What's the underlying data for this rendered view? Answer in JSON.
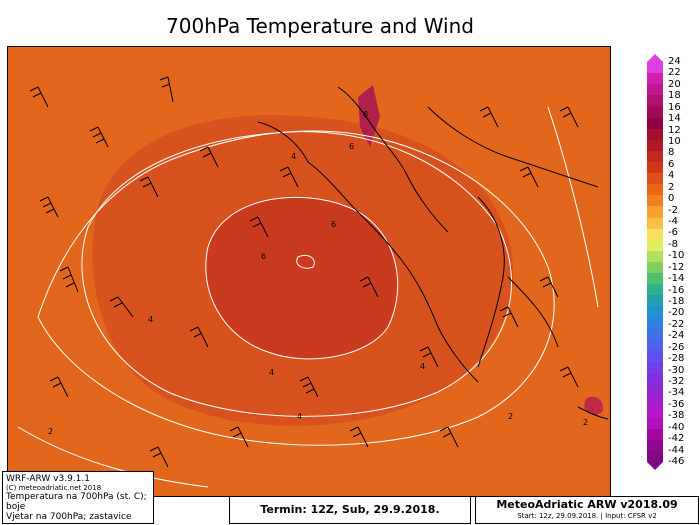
{
  "title": "700hPa Temperature and Wind",
  "colorbar": {
    "labels": [
      "24",
      "22",
      "20",
      "18",
      "16",
      "14",
      "12",
      "10",
      "8",
      "6",
      "4",
      "2",
      "0",
      "-2",
      "-4",
      "-6",
      "-8",
      "-10",
      "-12",
      "-14",
      "-16",
      "-18",
      "-20",
      "-22",
      "-24",
      "-26",
      "-28",
      "-30",
      "-32",
      "-34",
      "-36",
      "-38",
      "-40",
      "-42",
      "-44",
      "-46"
    ],
    "colors": [
      "#e040e0",
      "#d020b0",
      "#c01890",
      "#b01070",
      "#a00858",
      "#900040",
      "#a01030",
      "#b01828",
      "#c02820",
      "#d03818",
      "#e05018",
      "#e86818",
      "#f08020",
      "#f8a030",
      "#f8c040",
      "#f8e060",
      "#e0f060",
      "#b0e060",
      "#80d060",
      "#50c070",
      "#30b090",
      "#20a0b0",
      "#2090d0",
      "#3080e0",
      "#4070e8",
      "#5060f0",
      "#6050f0",
      "#7040e8",
      "#8030e0",
      "#9028d8",
      "#a020d0",
      "#b018c8",
      "#b010b8",
      "#a008a0",
      "#900890",
      "#800880"
    ]
  },
  "map_labels": {
    "contour_6a": "6",
    "contour_6b": "6",
    "contour_6c": "6",
    "contour_4a": "4",
    "contour_4b": "4",
    "contour_4c": "4",
    "contour_4d": "4",
    "contour_4e": "4",
    "contour_2a": "2",
    "contour_2b": "2",
    "contour_2c": "2",
    "contour_8": "8"
  },
  "footer": {
    "version": "WRF-ARW v3.9.1.1",
    "copyright": "(C) meteoadriatic.net 2018",
    "desc_line1": "Temperatura na 700hPa (st. C); boje",
    "desc_line2": "Vjetar na 700hPa; zastavice",
    "termin": "Termin: 12Z, Sub, 29.9.2018.",
    "brand": "MeteoAdriatic ARW v2018.09",
    "start": "Start: 12z, 29.09.2018. | Input: CFSR v2"
  },
  "colors": {
    "background_orange": "#e2661c",
    "ring_orange": "#d8521e",
    "core_red": "#c93a1e",
    "peak": "#b0204a"
  }
}
